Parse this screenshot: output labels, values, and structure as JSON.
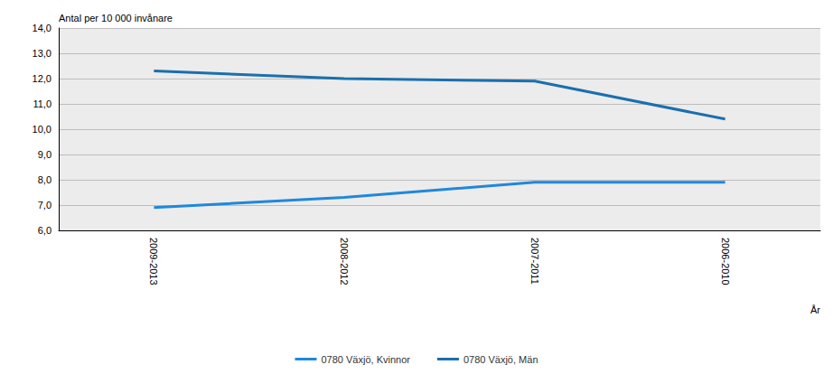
{
  "chart_data": {
    "type": "line",
    "y_label": "Antal per 10 000 invånare",
    "x_label": "År",
    "categories": [
      "2009-2013",
      "2008-2012",
      "2007-2011",
      "2006-2010"
    ],
    "series": [
      {
        "name": "0780 Växjö, Kvinnor",
        "color": "#1f88db",
        "values": [
          6.9,
          7.3,
          7.9,
          7.9
        ]
      },
      {
        "name": "0780 Växjö, Män",
        "color": "#1b6fae",
        "values": [
          12.3,
          12.0,
          11.9,
          10.4
        ]
      }
    ],
    "ylim": [
      6,
      14
    ],
    "yticks": [
      {
        "value": 6,
        "label": "6,0"
      },
      {
        "value": 7,
        "label": "7,0"
      },
      {
        "value": 8,
        "label": "8,0"
      },
      {
        "value": 9,
        "label": "9,0"
      },
      {
        "value": 10,
        "label": "10,0"
      },
      {
        "value": 11,
        "label": "11,0"
      },
      {
        "value": 12,
        "label": "12,0"
      },
      {
        "value": 13,
        "label": "13,0"
      },
      {
        "value": 14,
        "label": "14,0"
      }
    ],
    "grid": true,
    "legend": "bottom"
  }
}
